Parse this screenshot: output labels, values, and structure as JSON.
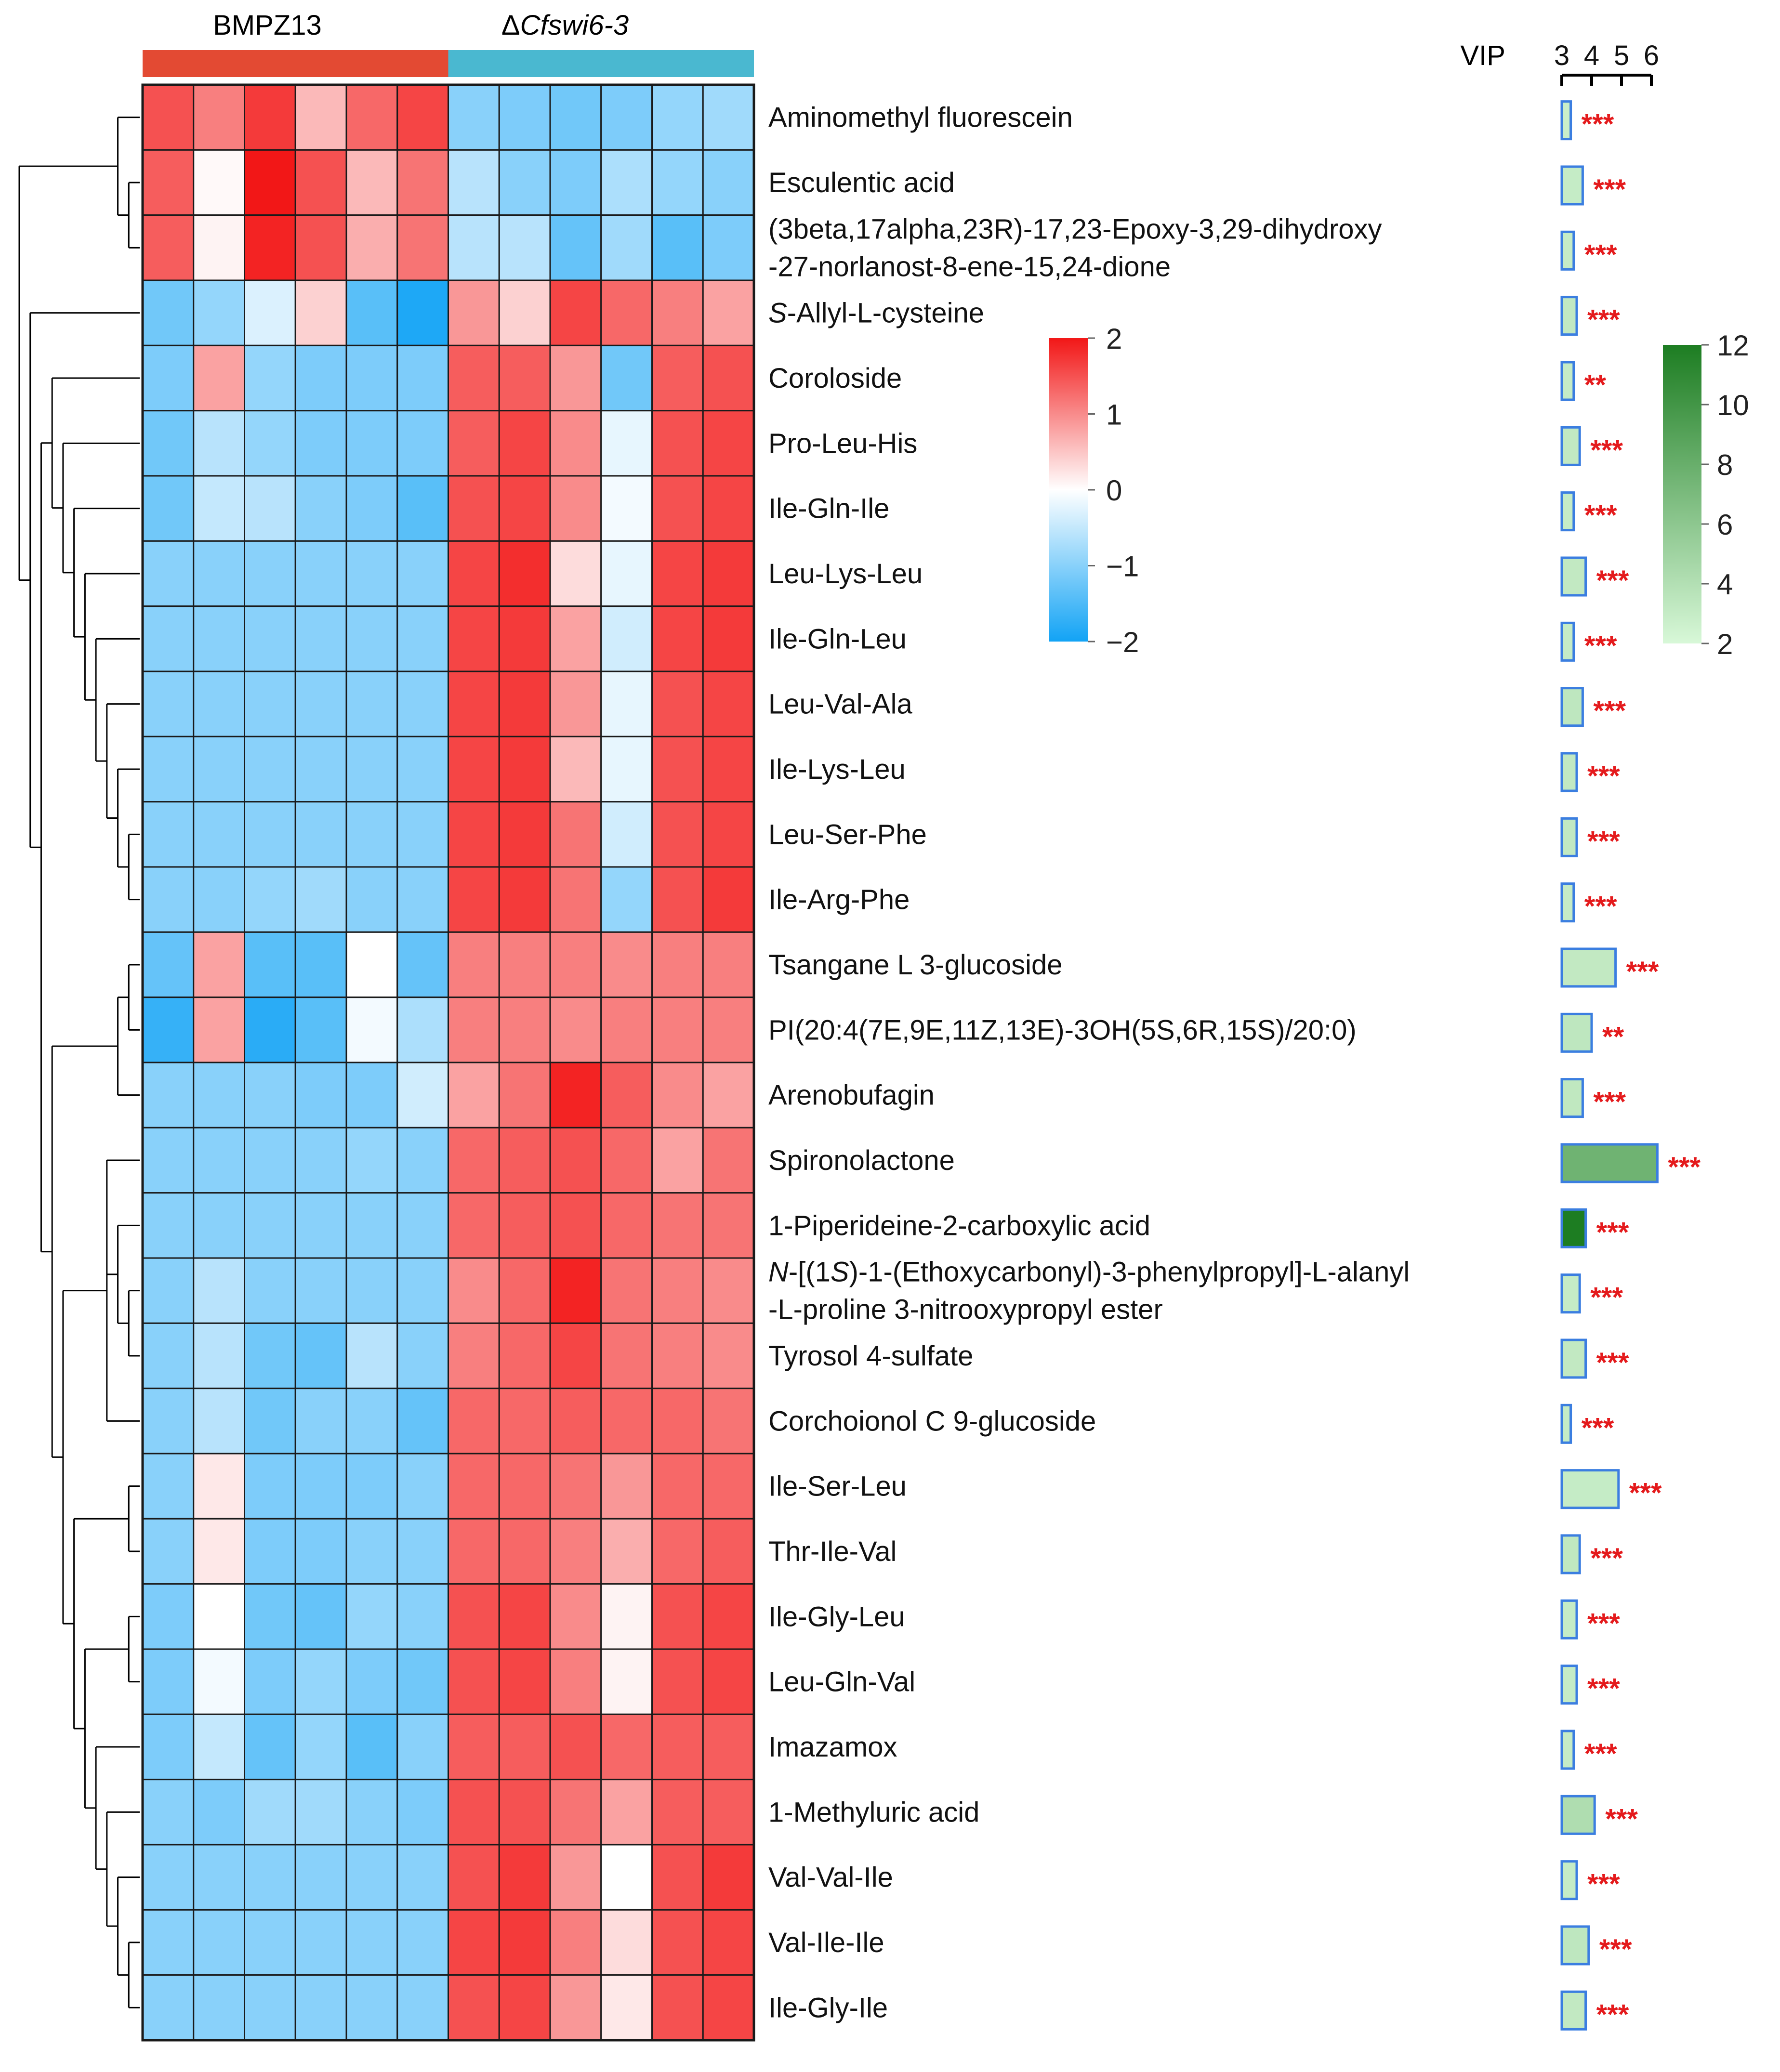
{
  "chart_data": {
    "type": "heatmap",
    "groups": [
      {
        "name": "BMPZ13",
        "color": "#e34a33",
        "n": 6
      },
      {
        "name": "ΔCfswi6-3",
        "color": "#4ab8d0",
        "n": 6
      }
    ],
    "group_labels": {
      "plain": "BMPZ13",
      "delta": "Δ",
      "italic": "Cfswi6-3"
    },
    "rows": [
      {
        "label": [
          "Aminomethyl fluorescein"
        ],
        "values": [
          1.5,
          1.1,
          1.7,
          0.6,
          1.3,
          1.6,
          -1.0,
          -1.1,
          -1.2,
          -1.1,
          -0.9,
          -0.8
        ],
        "vip": 3.3,
        "vip_color": 2.8,
        "sig": "***"
      },
      {
        "label": [
          "Esculentic acid"
        ],
        "values": [
          1.4,
          0.05,
          2.0,
          1.5,
          0.6,
          1.2,
          -0.6,
          -1.0,
          -1.1,
          -0.7,
          -0.9,
          -1.0
        ],
        "vip": 3.7,
        "vip_color": 3.0,
        "sig": "***"
      },
      {
        "label": [
          "(3beta,17alpha,23R)-17,23-Epoxy-3,29-dihydroxy",
          "-27-norlanost-8-ene-15,24-dione"
        ],
        "values": [
          1.4,
          0.1,
          1.9,
          1.5,
          0.7,
          1.2,
          -0.6,
          -0.6,
          -1.3,
          -0.8,
          -1.4,
          -1.1
        ],
        "vip": 3.4,
        "vip_color": 3.0,
        "sig": "***"
      },
      {
        "label": [
          [
            "S",
            "-Allyl-L-cysteine"
          ]
        ],
        "values": [
          -1.2,
          -0.9,
          -0.3,
          0.4,
          -1.4,
          -1.9,
          0.9,
          0.4,
          1.6,
          1.3,
          1.1,
          0.8
        ],
        "vip": 3.5,
        "vip_color": 3.2,
        "sig": "***"
      },
      {
        "label": [
          "Coroloside"
        ],
        "values": [
          -1.1,
          0.8,
          -0.9,
          -1.1,
          -1.1,
          -1.1,
          1.4,
          1.4,
          0.9,
          -1.2,
          1.4,
          1.5
        ],
        "vip": 3.4,
        "vip_color": 3.0,
        "sig": "**"
      },
      {
        "label": [
          "Pro-Leu-His"
        ],
        "values": [
          -1.2,
          -0.6,
          -0.9,
          -1.1,
          -1.1,
          -1.1,
          1.4,
          1.6,
          1.0,
          -0.2,
          1.5,
          1.6
        ],
        "vip": 3.6,
        "vip_color": 3.2,
        "sig": "***"
      },
      {
        "label": [
          "Ile-Gln-Ile"
        ],
        "values": [
          -1.2,
          -0.5,
          -0.6,
          -1.0,
          -1.1,
          -1.4,
          1.5,
          1.6,
          1.0,
          -0.1,
          1.5,
          1.6
        ],
        "vip": 3.4,
        "vip_color": 3.0,
        "sig": "***"
      },
      {
        "label": [
          "Leu-Lys-Leu"
        ],
        "values": [
          -1.0,
          -1.0,
          -1.0,
          -1.0,
          -1.0,
          -1.0,
          1.6,
          1.8,
          0.3,
          -0.2,
          1.6,
          1.7
        ],
        "vip": 3.8,
        "vip_color": 3.2,
        "sig": "***"
      },
      {
        "label": [
          "Ile-Gln-Leu"
        ],
        "values": [
          -1.0,
          -1.0,
          -1.0,
          -1.0,
          -1.0,
          -1.0,
          1.6,
          1.7,
          0.8,
          -0.4,
          1.6,
          1.7
        ],
        "vip": 3.4,
        "vip_color": 3.0,
        "sig": "***"
      },
      {
        "label": [
          "Leu-Val-Ala"
        ],
        "values": [
          -1.0,
          -1.0,
          -1.0,
          -1.0,
          -1.0,
          -1.0,
          1.6,
          1.7,
          0.9,
          -0.2,
          1.5,
          1.6
        ],
        "vip": 3.7,
        "vip_color": 3.4,
        "sig": "***"
      },
      {
        "label": [
          "Ile-Lys-Leu"
        ],
        "values": [
          -1.0,
          -1.0,
          -1.0,
          -1.0,
          -1.0,
          -1.0,
          1.6,
          1.7,
          0.6,
          -0.2,
          1.5,
          1.6
        ],
        "vip": 3.5,
        "vip_color": 3.2,
        "sig": "***"
      },
      {
        "label": [
          "Leu-Ser-Phe"
        ],
        "values": [
          -1.0,
          -1.0,
          -1.0,
          -1.0,
          -1.0,
          -1.0,
          1.6,
          1.7,
          1.2,
          -0.4,
          1.5,
          1.6
        ],
        "vip": 3.5,
        "vip_color": 3.2,
        "sig": "***"
      },
      {
        "label": [
          "Ile-Arg-Phe"
        ],
        "values": [
          -1.0,
          -1.0,
          -0.9,
          -0.8,
          -1.0,
          -1.0,
          1.6,
          1.7,
          1.2,
          -0.9,
          1.5,
          1.7
        ],
        "vip": 3.4,
        "vip_color": 3.0,
        "sig": "***"
      },
      {
        "label": [
          "Tsangane L 3-glucoside"
        ],
        "values": [
          -1.3,
          0.8,
          -1.4,
          -1.4,
          0.0,
          -1.3,
          1.1,
          1.1,
          1.1,
          1.0,
          1.1,
          1.1
        ],
        "vip": 4.8,
        "vip_color": 3.2,
        "sig": "***"
      },
      {
        "label": [
          "PI(20:4(7E,9E,11Z,13E)-3OH(5S,6R,15S)/20:0)"
        ],
        "values": [
          -1.7,
          0.8,
          -1.8,
          -1.4,
          -0.1,
          -0.7,
          1.1,
          1.1,
          1.0,
          1.1,
          1.1,
          1.1
        ],
        "vip": 4.0,
        "vip_color": 3.4,
        "sig": "**"
      },
      {
        "label": [
          "Arenobufagin"
        ],
        "values": [
          -1.0,
          -1.0,
          -1.0,
          -1.1,
          -1.1,
          -0.4,
          0.8,
          1.2,
          1.9,
          1.4,
          1.0,
          0.8
        ],
        "vip": 3.7,
        "vip_color": 3.3,
        "sig": "***"
      },
      {
        "label": [
          "Spironolactone"
        ],
        "values": [
          -1.0,
          -1.0,
          -1.0,
          -1.0,
          -0.9,
          -1.0,
          1.3,
          1.4,
          1.5,
          1.3,
          0.8,
          1.2
        ],
        "vip": 6.2,
        "vip_color": 7.6,
        "sig": "***"
      },
      {
        "label": [
          "1-Piperideine-2-carboxylic acid"
        ],
        "values": [
          -1.0,
          -1.0,
          -1.0,
          -1.0,
          -1.0,
          -1.0,
          1.3,
          1.4,
          1.5,
          1.3,
          1.2,
          1.2
        ],
        "vip": 3.8,
        "vip_color": 12.0,
        "sig": "***"
      },
      {
        "label": [
          [
            [
              "N",
              true
            ],
            [
              "-[(1",
              false
            ],
            [
              "S",
              true
            ],
            [
              ")-1-(Ethoxycarbonyl)-3-phenylpropyl]-L-alanyl",
              false
            ]
          ],
          "-L-proline 3-nitrooxypropyl ester"
        ],
        "values": [
          -1.0,
          -0.6,
          -1.0,
          -1.0,
          -1.0,
          -1.0,
          1.0,
          1.3,
          1.9,
          1.2,
          1.1,
          1.0
        ],
        "vip": 3.6,
        "vip_color": 3.0,
        "sig": "***"
      },
      {
        "label": [
          "Tyrosol 4-sulfate"
        ],
        "values": [
          -1.0,
          -0.6,
          -1.2,
          -1.3,
          -0.6,
          -1.0,
          1.1,
          1.3,
          1.6,
          1.2,
          1.1,
          1.0
        ],
        "vip": 3.8,
        "vip_color": 3.2,
        "sig": "***"
      },
      {
        "label": [
          "Corchoionol C 9-glucoside"
        ],
        "values": [
          -1.0,
          -0.6,
          -1.2,
          -1.0,
          -1.0,
          -1.3,
          1.3,
          1.3,
          1.4,
          1.3,
          1.3,
          1.2
        ],
        "vip": 3.3,
        "vip_color": 3.0,
        "sig": "***"
      },
      {
        "label": [
          "Ile-Ser-Leu"
        ],
        "values": [
          -1.0,
          0.2,
          -1.1,
          -1.1,
          -1.1,
          -1.0,
          1.3,
          1.3,
          1.2,
          0.9,
          1.3,
          1.3
        ],
        "vip": 4.9,
        "vip_color": 3.0,
        "sig": "***"
      },
      {
        "label": [
          "Thr-Ile-Val"
        ],
        "values": [
          -1.0,
          0.2,
          -1.1,
          -1.1,
          -1.0,
          -1.0,
          1.3,
          1.3,
          1.1,
          0.7,
          1.3,
          1.4
        ],
        "vip": 3.6,
        "vip_color": 3.3,
        "sig": "***"
      },
      {
        "label": [
          "Ile-Gly-Leu"
        ],
        "values": [
          -1.1,
          0.0,
          -1.2,
          -1.3,
          -0.9,
          -1.0,
          1.5,
          1.6,
          1.0,
          0.1,
          1.5,
          1.6
        ],
        "vip": 3.5,
        "vip_color": 3.0,
        "sig": "***"
      },
      {
        "label": [
          "Leu-Gln-Val"
        ],
        "values": [
          -1.1,
          -0.1,
          -1.1,
          -0.9,
          -1.1,
          -1.2,
          1.5,
          1.6,
          1.1,
          0.1,
          1.5,
          1.6
        ],
        "vip": 3.5,
        "vip_color": 3.0,
        "sig": "***"
      },
      {
        "label": [
          "Imazamox"
        ],
        "values": [
          -1.1,
          -0.5,
          -1.3,
          -0.9,
          -1.4,
          -1.0,
          1.4,
          1.4,
          1.5,
          1.3,
          1.4,
          1.4
        ],
        "vip": 3.4,
        "vip_color": 3.0,
        "sig": "***"
      },
      {
        "label": [
          "1-Methyluric acid"
        ],
        "values": [
          -1.0,
          -1.1,
          -0.8,
          -0.8,
          -1.0,
          -1.1,
          1.5,
          1.5,
          1.2,
          0.8,
          1.4,
          1.4
        ],
        "vip": 4.1,
        "vip_color": 4.2,
        "sig": "***"
      },
      {
        "label": [
          "Val-Val-Ile"
        ],
        "values": [
          -1.0,
          -1.0,
          -1.0,
          -1.0,
          -1.0,
          -1.0,
          1.5,
          1.7,
          0.9,
          0.0,
          1.5,
          1.7
        ],
        "vip": 3.5,
        "vip_color": 3.0,
        "sig": "***"
      },
      {
        "label": [
          "Val-Ile-Ile"
        ],
        "values": [
          -1.0,
          -1.0,
          -1.0,
          -1.0,
          -1.0,
          -1.0,
          1.6,
          1.7,
          1.1,
          0.3,
          1.5,
          1.6
        ],
        "vip": 3.9,
        "vip_color": 3.4,
        "sig": "***"
      },
      {
        "label": [
          "Ile-Gly-Ile"
        ],
        "values": [
          -1.0,
          -1.0,
          -1.0,
          -1.0,
          -1.0,
          -1.0,
          1.5,
          1.6,
          0.9,
          0.2,
          1.5,
          1.6
        ],
        "vip": 3.8,
        "vip_color": 3.2,
        "sig": "***"
      }
    ],
    "color_scale": {
      "min": -2,
      "max": 2,
      "ticks": [
        "2",
        "1",
        "0",
        "−1",
        "−2"
      ],
      "low": "#12a3f5",
      "mid": "#ffffff",
      "high": "#f21717"
    },
    "vip_axis": {
      "label": "VIP",
      "min": 3,
      "max": 6,
      "ticks": [
        "3",
        "4",
        "5",
        "6"
      ]
    },
    "vip_color_scale": {
      "min": 2,
      "max": 12,
      "ticks": [
        "12",
        "10",
        "8",
        "6",
        "4",
        "2"
      ],
      "low": "#d8f8d8",
      "high": "#1d7d22"
    },
    "dendrogram": {
      "children": [
        {
          "children": [
            {
              "leaf": 0
            },
            {
              "children": [
                {
                  "leaf": 1
                },
                {
                  "leaf": 2
                }
              ]
            }
          ]
        },
        {
          "children": [
            {
              "leaf": 3
            },
            {
              "children": [
                {
                  "children": [
                    {
                      "leaf": 4
                    },
                    {
                      "children": [
                        {
                          "leaf": 5
                        },
                        {
                          "children": [
                            {
                              "leaf": 6
                            },
                            {
                              "children": [
                                {
                                  "leaf": 7
                                },
                                {
                                  "children": [
                                    {
                                      "leaf": 8
                                    },
                                    {
                                      "children": [
                                        {
                                          "leaf": 9
                                        },
                                        {
                                          "children": [
                                            {
                                              "leaf": 10
                                            },
                                            {
                                              "children": [
                                                {
                                                  "leaf": 11
                                                },
                                                {
                                                  "leaf": 12
                                                }
                                              ]
                                            }
                                          ]
                                        }
                                      ]
                                    }
                                  ]
                                }
                              ]
                            }
                          ]
                        }
                      ]
                    }
                  ]
                },
                {
                  "children": [
                    {
                      "children": [
                        {
                          "children": [
                            {
                              "leaf": 13
                            },
                            {
                              "leaf": 14
                            }
                          ]
                        },
                        {
                          "leaf": 15
                        }
                      ]
                    },
                    {
                      "children": [
                        {
                          "children": [
                            {
                              "leaf": 16
                            },
                            {
                              "children": [
                                {
                                  "leaf": 17
                                },
                                {
                                  "children": [
                                    {
                                      "leaf": 18
                                    },
                                    {
                                      "leaf": 19
                                    }
                                  ]
                                }
                              ]
                            },
                            {
                              "leaf": 20
                            }
                          ]
                        },
                        {
                          "children": [
                            {
                              "children": [
                                {
                                  "leaf": 21
                                },
                                {
                                  "leaf": 22
                                }
                              ]
                            },
                            {
                              "children": [
                                {
                                  "children": [
                                    {
                                      "leaf": 23
                                    },
                                    {
                                      "leaf": 24
                                    }
                                  ]
                                },
                                {
                                  "children": [
                                    {
                                      "leaf": 25
                                    },
                                    {
                                      "children": [
                                        {
                                          "leaf": 26
                                        },
                                        {
                                          "children": [
                                            {
                                              "leaf": 27
                                            },
                                            {
                                              "children": [
                                                {
                                                  "leaf": 28
                                                },
                                                {
                                                  "leaf": 29
                                                }
                                              ]
                                            }
                                          ]
                                        }
                                      ]
                                    }
                                  ]
                                }
                              ]
                            }
                          ]
                        }
                      ]
                    }
                  ]
                }
              ]
            }
          ]
        }
      ]
    }
  }
}
